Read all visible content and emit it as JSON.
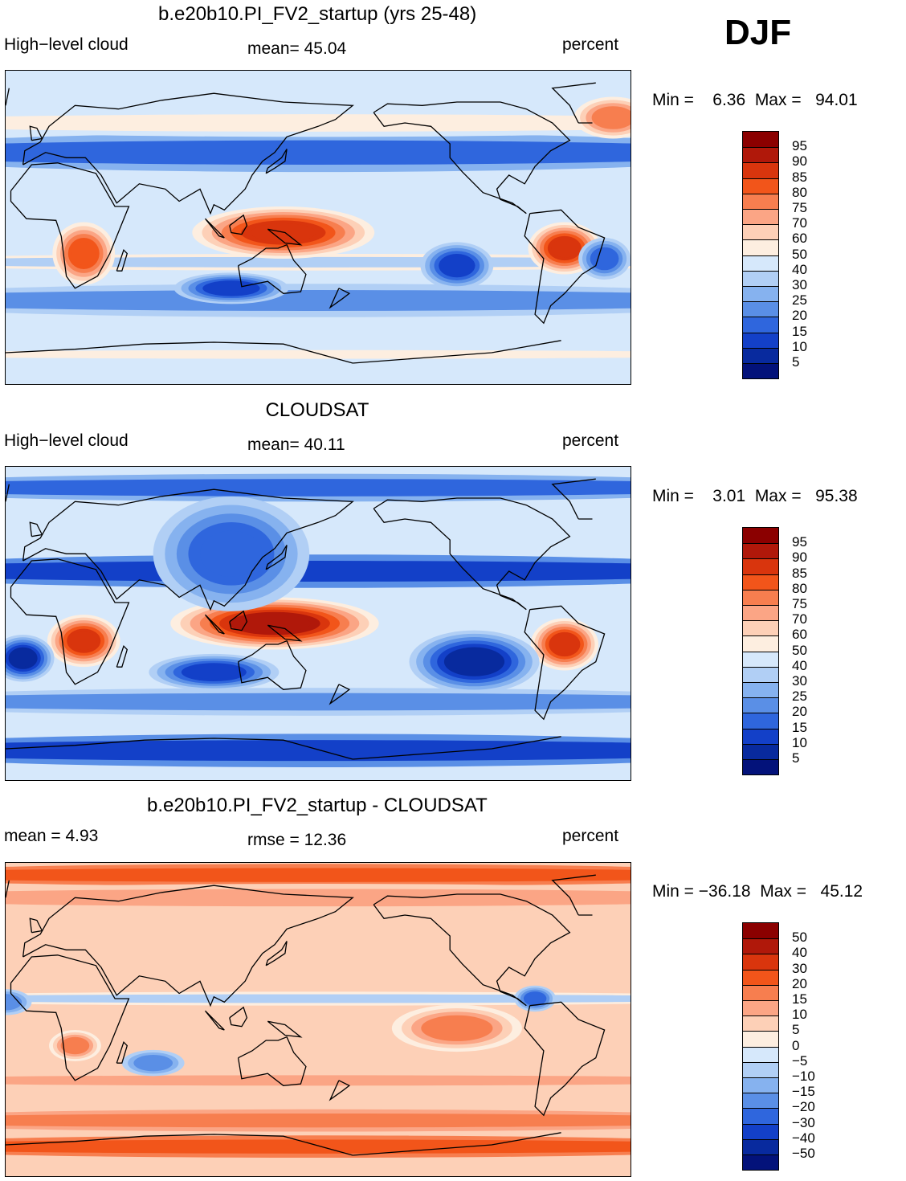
{
  "season": "DJF",
  "panels": [
    {
      "title": "b.e20b10.PI_FV2_startup (yrs 25-48)",
      "left_label": "High−level cloud",
      "center_label": "mean=   45.04",
      "units": "percent",
      "minmax": "Min =    6.36  Max =   94.01",
      "colorbar_labels": [
        "95",
        "90",
        "85",
        "80",
        "75",
        "70",
        "60",
        "50",
        "40",
        "30",
        "25",
        "20",
        "15",
        "10",
        "5"
      ],
      "colors": [
        "#8b0000",
        "#b0180a",
        "#d9350d",
        "#f2551a",
        "#f77e4f",
        "#fba585",
        "#fdd0b7",
        "#fdeee0",
        "#d6e8fb",
        "#b1cff5",
        "#86b2ef",
        "#5a8fe6",
        "#2f66dd",
        "#1340c8",
        "#082a9e",
        "#03127a"
      ],
      "fields": [
        {
          "type": "band",
          "lat": 43,
          "width": 14,
          "level": 12
        },
        {
          "type": "band",
          "lat": -42,
          "width": 12,
          "level": 11
        },
        {
          "type": "band",
          "lat": -20,
          "width": 6,
          "level": 9
        },
        {
          "type": "band",
          "lat": 60,
          "width": 10,
          "level": 7
        },
        {
          "type": "band",
          "lat": -73,
          "width": 5,
          "level": 7
        },
        {
          "type": "blob",
          "lon": 140,
          "lat": -3,
          "rx": 35,
          "ry": 10,
          "level": 2
        },
        {
          "type": "blob",
          "lon": 25,
          "lat": -15,
          "rx": 12,
          "ry": 12,
          "level": 3
        },
        {
          "type": "blob",
          "lon": -58,
          "lat": -12,
          "rx": 14,
          "ry": 10,
          "level": 2
        },
        {
          "type": "blob",
          "lon": -120,
          "lat": -22,
          "rx": 14,
          "ry": 9,
          "level": 13
        },
        {
          "type": "blob",
          "lon": 110,
          "lat": -35,
          "rx": 22,
          "ry": 6,
          "level": 13
        },
        {
          "type": "blob",
          "lon": -35,
          "lat": -18,
          "rx": 10,
          "ry": 8,
          "level": 12
        },
        {
          "type": "blob",
          "lon": -30,
          "lat": 63,
          "rx": 15,
          "ry": 8,
          "level": 4
        }
      ]
    },
    {
      "title": "CLOUDSAT",
      "left_label": "High−level cloud",
      "center_label": "mean=   40.11",
      "units": "percent",
      "minmax": "Min =    3.01  Max =   95.38",
      "colorbar_labels": [
        "95",
        "90",
        "85",
        "80",
        "75",
        "70",
        "60",
        "50",
        "40",
        "30",
        "25",
        "20",
        "15",
        "10",
        "5"
      ],
      "colors": [
        "#8b0000",
        "#b0180a",
        "#d9350d",
        "#f2551a",
        "#f77e4f",
        "#fba585",
        "#fdd0b7",
        "#fdeee0",
        "#d6e8fb",
        "#b1cff5",
        "#86b2ef",
        "#5a8fe6",
        "#2f66dd",
        "#1340c8",
        "#082a9e",
        "#03127a"
      ],
      "fields": [
        {
          "type": "band",
          "lat": 78,
          "width": 10,
          "level": 12
        },
        {
          "type": "band",
          "lat": -73,
          "width": 12,
          "level": 13
        },
        {
          "type": "band",
          "lat": 30,
          "width": 12,
          "level": 13
        },
        {
          "type": "band",
          "lat": -45,
          "width": 10,
          "level": 11
        },
        {
          "type": "blob",
          "lon": 135,
          "lat": 0,
          "rx": 40,
          "ry": 10,
          "level": 1
        },
        {
          "type": "blob",
          "lon": 25,
          "lat": -10,
          "rx": 14,
          "ry": 10,
          "level": 2
        },
        {
          "type": "blob",
          "lon": -58,
          "lat": -12,
          "rx": 13,
          "ry": 10,
          "level": 2
        },
        {
          "type": "blob",
          "lon": -110,
          "lat": -22,
          "rx": 25,
          "ry": 12,
          "level": 14
        },
        {
          "type": "blob",
          "lon": -10,
          "lat": -20,
          "rx": 12,
          "ry": 9,
          "level": 14
        },
        {
          "type": "blob",
          "lon": 100,
          "lat": -28,
          "rx": 25,
          "ry": 7,
          "level": 13
        },
        {
          "type": "blob",
          "lon": 110,
          "lat": 40,
          "rx": 30,
          "ry": 22,
          "level": 12
        }
      ]
    },
    {
      "title": "b.e20b10.PI_FV2_startup - CLOUDSAT",
      "left_label": "mean =     4.93",
      "center_label": "rmse =    12.36",
      "units": "percent",
      "minmax": "Min = −36.18  Max =   45.12",
      "colorbar_labels": [
        "50",
        "40",
        "30",
        "20",
        "15",
        "10",
        "5",
        "0",
        "−5",
        "−10",
        "−15",
        "−20",
        "−30",
        "−40",
        "−50"
      ],
      "colors": [
        "#8b0000",
        "#b0180a",
        "#d9350d",
        "#f2551a",
        "#f77e4f",
        "#fba585",
        "#fdd0b7",
        "#fdeee0",
        "#d6e8fb",
        "#b1cff5",
        "#86b2ef",
        "#5a8fe6",
        "#2f66dd",
        "#1340c8",
        "#082a9e",
        "#03127a"
      ],
      "fields": [
        {
          "type": "band",
          "lat": 83,
          "width": 8,
          "level": 3
        },
        {
          "type": "band",
          "lat": 70,
          "width": 10,
          "level": 5
        },
        {
          "type": "band",
          "lat": -73,
          "width": 8,
          "level": 3
        },
        {
          "type": "band",
          "lat": -58,
          "width": 8,
          "level": 4
        },
        {
          "type": "band",
          "lat": -35,
          "width": 6,
          "level": 5
        },
        {
          "type": "band",
          "lat": 12,
          "width": 5,
          "level": 9
        },
        {
          "type": "blob",
          "lon": -120,
          "lat": -5,
          "rx": 25,
          "ry": 9,
          "level": 4
        },
        {
          "type": "blob",
          "lon": 65,
          "lat": -25,
          "rx": 12,
          "ry": 5,
          "level": 11
        },
        {
          "type": "blob",
          "lon": -75,
          "lat": 12,
          "rx": 8,
          "ry": 5,
          "level": 12
        },
        {
          "type": "blob",
          "lon": -20,
          "lat": 10,
          "rx": 10,
          "ry": 5,
          "level": 11
        },
        {
          "type": "blob",
          "lon": 20,
          "lat": -15,
          "rx": 10,
          "ry": 6,
          "level": 4
        }
      ]
    }
  ]
}
